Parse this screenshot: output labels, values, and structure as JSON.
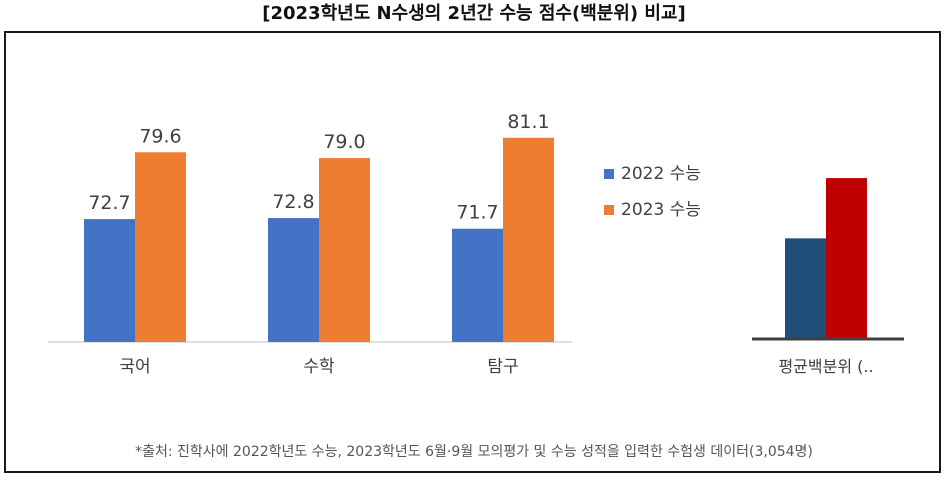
{
  "title": "[2023학년도 N수생의 2년간 수능 점수(백분위) 비교]",
  "footnote": "*출처: 진학사에 2022학년도 수능, 2023학년도 6월·9월 모의평가 및 수능 성적을 입력한 수험생 데이터(3,054명)",
  "chart_data": [
    {
      "type": "bar",
      "categories": [
        "국어",
        "수학",
        "탐구"
      ],
      "series": [
        {
          "name": "2022 수능",
          "color": "#4472C4",
          "values": [
            72.7,
            72.8,
            71.7
          ]
        },
        {
          "name": "2023 수능",
          "color": "#ED7D31",
          "values": [
            79.6,
            79.0,
            81.1
          ]
        }
      ],
      "data_labels": [
        [
          "72.7",
          "72.8",
          "71.7"
        ],
        [
          "79.6",
          "79.0",
          "81.1"
        ]
      ],
      "ylim": [
        60,
        85
      ],
      "legend_position": "right",
      "grid": false
    },
    {
      "type": "bar",
      "categories": [
        "평균백분위 (.."
      ],
      "series": [
        {
          "color": "#1F4E79",
          "values": [
            72.4
          ]
        },
        {
          "color": "#C00000",
          "values": [
            79.9
          ]
        }
      ],
      "ylim": [
        60,
        85
      ],
      "grid": false
    }
  ]
}
